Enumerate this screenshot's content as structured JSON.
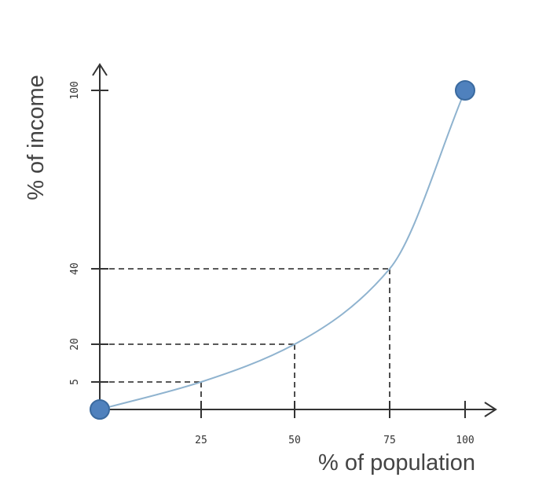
{
  "chart_data": {
    "type": "line",
    "title": "",
    "xlabel": "% of population",
    "ylabel": "% of income",
    "xlim": [
      0,
      100
    ],
    "ylim": [
      0,
      100
    ],
    "x_ticks": [
      25,
      50,
      75,
      100
    ],
    "x_tick_labels": [
      "25",
      "50",
      "75",
      "100"
    ],
    "y_ticks": [
      5,
      20,
      40,
      100
    ],
    "y_tick_labels": [
      "5",
      "20",
      "40",
      "100"
    ],
    "series": [
      {
        "x": [
          0,
          25,
          50,
          75,
          100
        ],
        "y": [
          0,
          5,
          20,
          40,
          100
        ]
      }
    ],
    "endpoints": [
      {
        "x": 0,
        "y": 0
      },
      {
        "x": 100,
        "y": 100
      }
    ],
    "guides": [
      {
        "x": 25,
        "y": 5
      },
      {
        "x": 50,
        "y": 20
      },
      {
        "x": 75,
        "y": 40
      }
    ],
    "grid": false,
    "colors": {
      "curve": "#8fb3cf",
      "endpoint": "#4f81bd",
      "axis": "#333333"
    }
  }
}
